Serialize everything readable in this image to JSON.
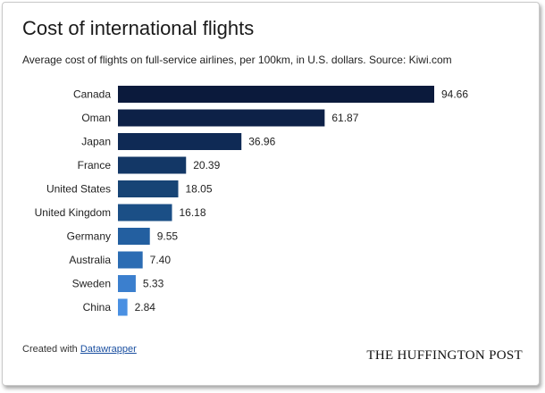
{
  "header": {
    "title": "Cost of international flights",
    "subtitle": "Average cost of flights on full-service airlines, per 100km, in U.S. dollars. Source: Kiwi.com"
  },
  "chart_data": {
    "type": "bar",
    "orientation": "horizontal",
    "categories": [
      "Canada",
      "Oman",
      "Japan",
      "France",
      "United States",
      "United Kingdom",
      "Germany",
      "Australia",
      "Sweden",
      "China"
    ],
    "values": [
      94.66,
      61.87,
      36.96,
      20.39,
      18.05,
      16.18,
      9.55,
      7.4,
      5.33,
      2.84
    ],
    "value_labels": [
      "94.66",
      "61.87",
      "36.96",
      "20.39",
      "18.05",
      "16.18",
      "9.55",
      "7.40",
      "5.33",
      "2.84"
    ],
    "xlim": [
      0,
      94.66
    ],
    "grid": false,
    "colors": [
      "#0b1a3c",
      "#0d2147",
      "#0f2a55",
      "#133766",
      "#174475",
      "#1b4f86",
      "#235fa0",
      "#2b6cb3",
      "#3b7fce",
      "#4a90e2"
    ]
  },
  "footer": {
    "created_with": "Created with",
    "tool_link": "Datawrapper",
    "brand": "THE HUFFINGTON POST"
  }
}
